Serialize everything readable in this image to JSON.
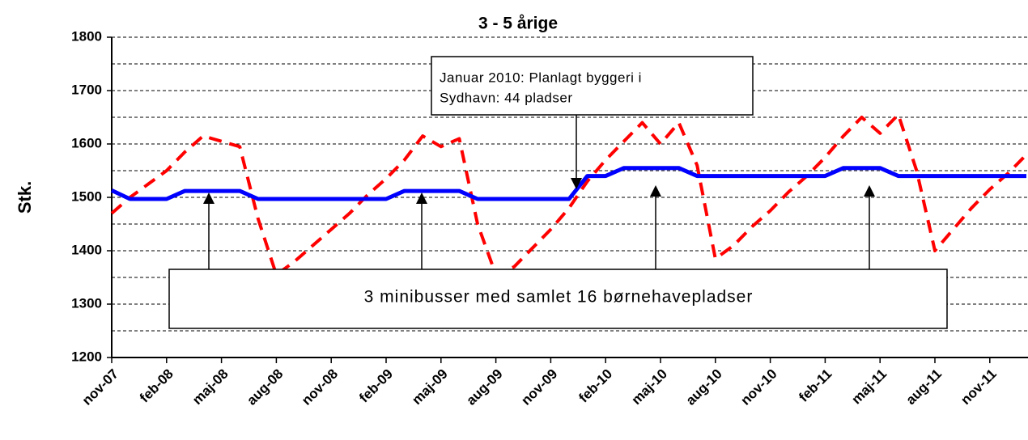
{
  "chart_data": {
    "type": "line",
    "title": "3 - 5 årige",
    "ylabel": "Stk.",
    "categories": [
      "nov-07",
      null,
      null,
      "feb-08",
      null,
      null,
      "maj-08",
      null,
      null,
      "aug-08",
      null,
      null,
      "nov-08",
      null,
      null,
      "feb-09",
      null,
      null,
      "maj-09",
      null,
      null,
      "aug-09",
      null,
      null,
      "nov-09",
      null,
      null,
      "feb-10",
      null,
      null,
      "maj-10",
      null,
      null,
      "aug-10",
      null,
      null,
      "nov-10",
      null,
      null,
      "feb-11",
      null,
      null,
      "maj-11",
      null,
      null,
      "aug-11",
      null,
      null,
      "nov-11",
      null,
      null
    ],
    "series": [
      {
        "color": "#ff0000",
        "dashed": true,
        "values": [
          1470,
          1500,
          1525,
          1550,
          1585,
          1615,
          1605,
          1595,
          1460,
          1355,
          1380,
          1410,
          1440,
          1470,
          1505,
          1535,
          1570,
          1615,
          1595,
          1610,
          1450,
          1355,
          1370,
          1405,
          1440,
          1480,
          1530,
          1570,
          1605,
          1640,
          1600,
          1640,
          1560,
          1385,
          1410,
          1445,
          1475,
          1510,
          1540,
          1575,
          1615,
          1650,
          1620,
          1655,
          1550,
          1400,
          1440,
          1480,
          1515,
          1545,
          1580
        ]
      },
      {
        "color": "#0000ff",
        "dashed": false,
        "values": [
          1513,
          1497,
          1497,
          1497,
          1512,
          1512,
          1512,
          1512,
          1497,
          1497,
          1497,
          1497,
          1497,
          1497,
          1497,
          1497,
          1512,
          1512,
          1512,
          1512,
          1497,
          1497,
          1497,
          1497,
          1497,
          1497,
          1540,
          1540,
          1555,
          1555,
          1555,
          1555,
          1540,
          1540,
          1540,
          1540,
          1540,
          1540,
          1540,
          1540,
          1555,
          1555,
          1555,
          1540,
          1540,
          1540,
          1540,
          1540,
          1540,
          1540,
          1540
        ]
      }
    ],
    "ylim": [
      1200,
      1800
    ],
    "yticks": [
      1200,
      1300,
      1400,
      1500,
      1600,
      1700,
      1800
    ],
    "yminorticks": [
      1250,
      1350,
      1450,
      1550,
      1650,
      1750
    ],
    "grid": true,
    "annotations": [
      {
        "lines": [
          "Januar 2010: Planlagt byggeri i",
          "Sydhavn: 44 pladser"
        ]
      },
      {
        "lines": [
          "3 minibusser med samlet 16 børnehavepladser"
        ]
      }
    ]
  }
}
